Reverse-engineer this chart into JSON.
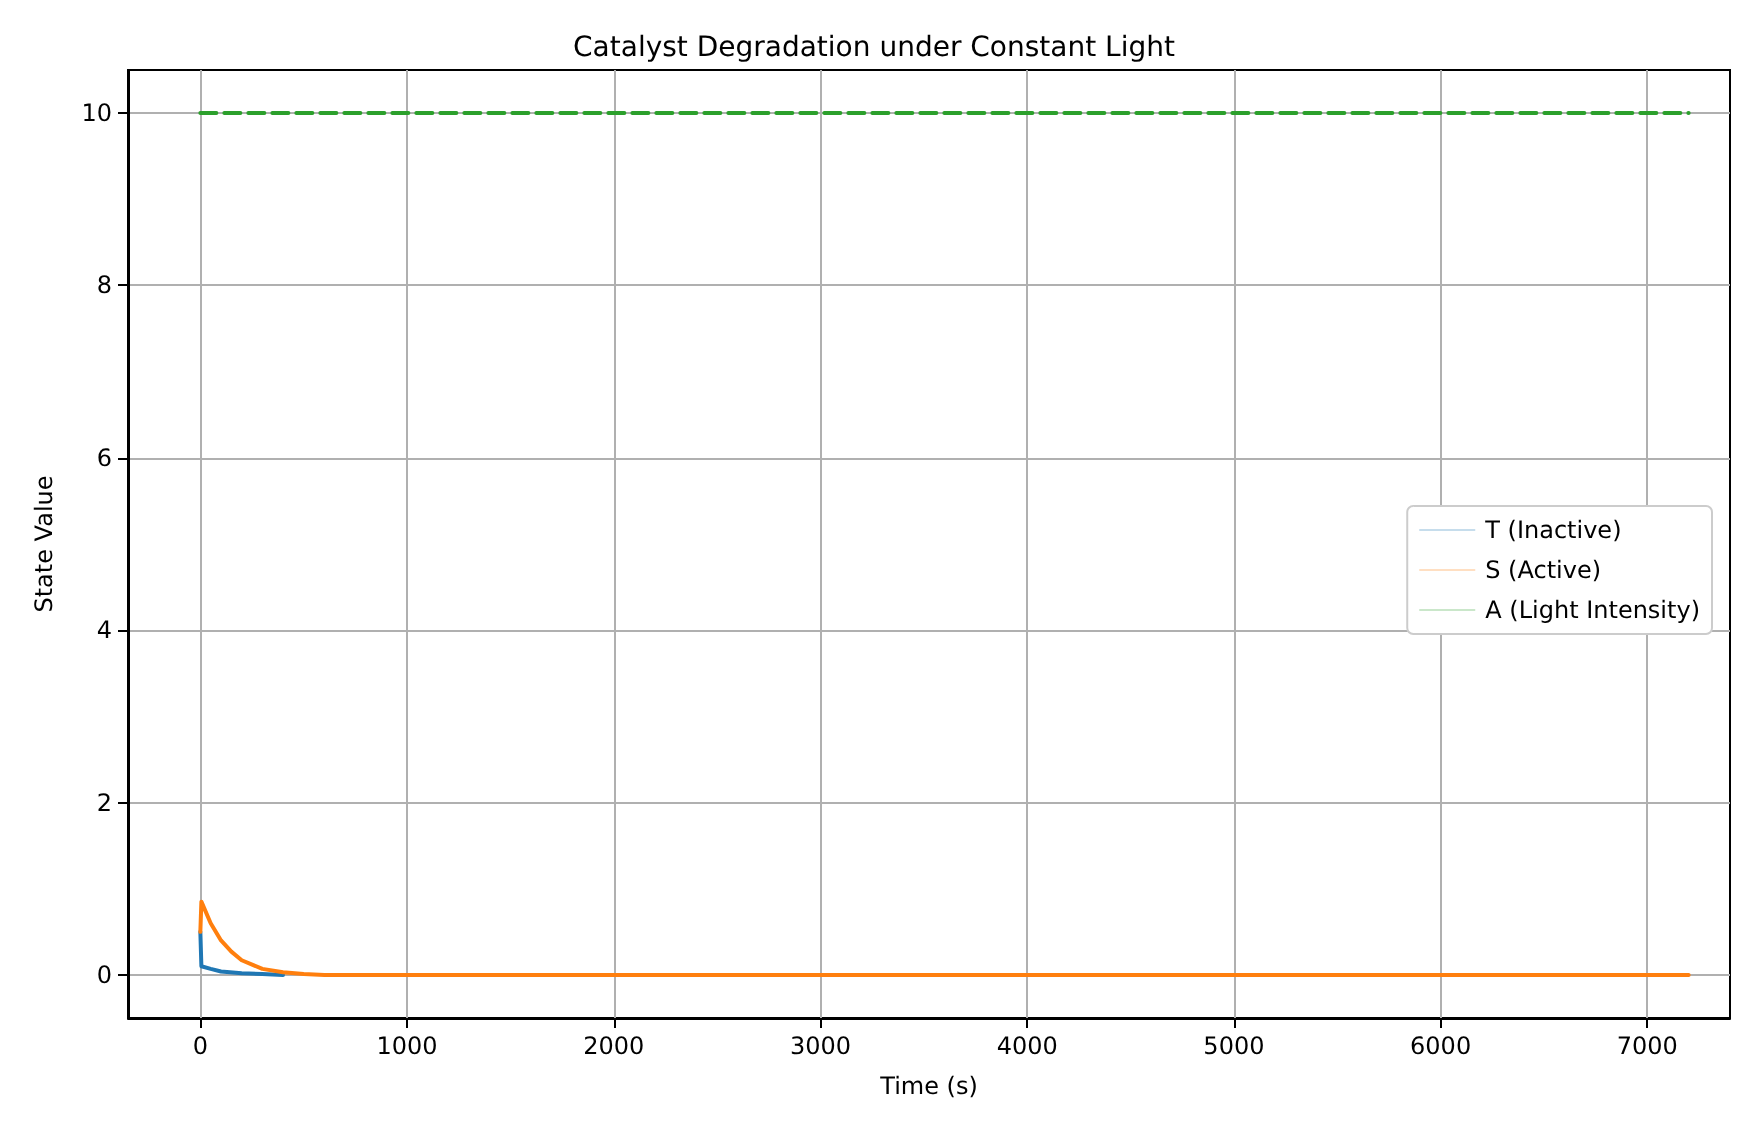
{
  "chart_data": {
    "type": "line",
    "title": "Catalyst Degradation under Constant Light",
    "xlabel": "Time (s)",
    "ylabel": "State Value",
    "xlim": [
      -350,
      7400
    ],
    "xticks": [
      0,
      1000,
      2000,
      3000,
      4000,
      5000,
      6000,
      7000
    ],
    "ylim": [
      -0.5,
      10.5
    ],
    "yticks": [
      0,
      2,
      4,
      6,
      8,
      10
    ],
    "grid": true,
    "legend": "right",
    "line_style": "solid",
    "series": [
      {
        "name": "T (Inactive)",
        "color": "#1f77b4",
        "x": [
          0,
          5,
          50,
          100,
          200,
          300,
          400
        ],
        "values": [
          0.5,
          0.1,
          0.07,
          0.04,
          0.02,
          0.01,
          0
        ]
      },
      {
        "name": "S (Active)",
        "color": "#ff7f0e",
        "x": [
          0,
          5,
          50,
          100,
          150,
          200,
          300,
          400,
          500,
          600,
          7200
        ],
        "values": [
          0.5,
          0.85,
          0.6,
          0.4,
          0.27,
          0.17,
          0.07,
          0.03,
          0.01,
          0,
          0
        ]
      },
      {
        "name": "A (Light Intensity)",
        "color": "#2ca02c",
        "line_style": "dashed",
        "x": [
          0,
          7200
        ],
        "values": [
          10,
          10
        ]
      }
    ]
  }
}
